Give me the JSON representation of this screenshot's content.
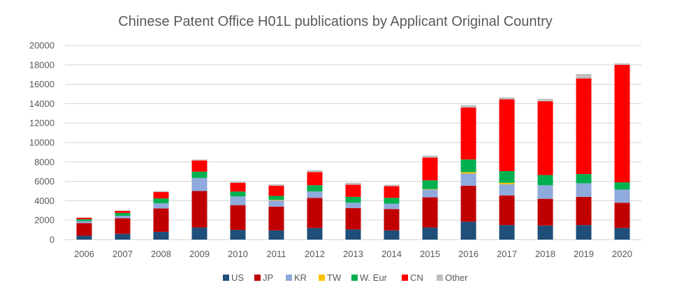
{
  "chart_data": {
    "type": "bar",
    "stacked": true,
    "title": "Chinese Patent Office H01L publications by Applicant Original Country",
    "xlabel": "",
    "ylabel": "",
    "ylim": [
      0,
      20000
    ],
    "yticks": [
      0,
      2000,
      4000,
      6000,
      8000,
      10000,
      12000,
      14000,
      16000,
      18000,
      20000
    ],
    "grid": true,
    "legend_position": "bottom",
    "categories": [
      "2006",
      "2007",
      "2008",
      "2009",
      "2010",
      "2011",
      "2012",
      "2013",
      "2014",
      "2015",
      "2016",
      "2017",
      "2018",
      "2019",
      "2020"
    ],
    "series": [
      {
        "name": "US",
        "color": "#1F4E79",
        "values": [
          400,
          600,
          800,
          1250,
          1000,
          950,
          1200,
          1050,
          950,
          1250,
          1850,
          1500,
          1450,
          1500,
          1200
        ]
      },
      {
        "name": "JP",
        "color": "#C00000",
        "values": [
          1300,
          1600,
          2400,
          3750,
          2550,
          2450,
          3100,
          2200,
          2200,
          3100,
          3700,
          3050,
          2750,
          2900,
          2600
        ]
      },
      {
        "name": "KR",
        "color": "#8FAADC",
        "values": [
          200,
          250,
          550,
          1350,
          900,
          650,
          650,
          550,
          550,
          800,
          1250,
          1150,
          1400,
          1400,
          1350
        ]
      },
      {
        "name": "TW",
        "color": "#FFC000",
        "values": [
          0,
          0,
          0,
          0,
          0,
          50,
          0,
          0,
          0,
          50,
          150,
          150,
          0,
          0,
          0
        ]
      },
      {
        "name": "W. Eur",
        "color": "#00B050",
        "values": [
          200,
          300,
          500,
          650,
          500,
          400,
          650,
          600,
          600,
          900,
          1300,
          1200,
          1050,
          950,
          750
        ]
      },
      {
        "name": "CN",
        "color": "#FF0000",
        "values": [
          150,
          200,
          650,
          1150,
          900,
          1050,
          1350,
          1250,
          1200,
          2350,
          5350,
          7400,
          7600,
          9850,
          12100
        ]
      },
      {
        "name": "Other",
        "color": "#BFBFBF",
        "values": [
          50,
          50,
          100,
          100,
          100,
          150,
          200,
          200,
          150,
          200,
          250,
          200,
          250,
          450,
          150
        ]
      }
    ]
  }
}
